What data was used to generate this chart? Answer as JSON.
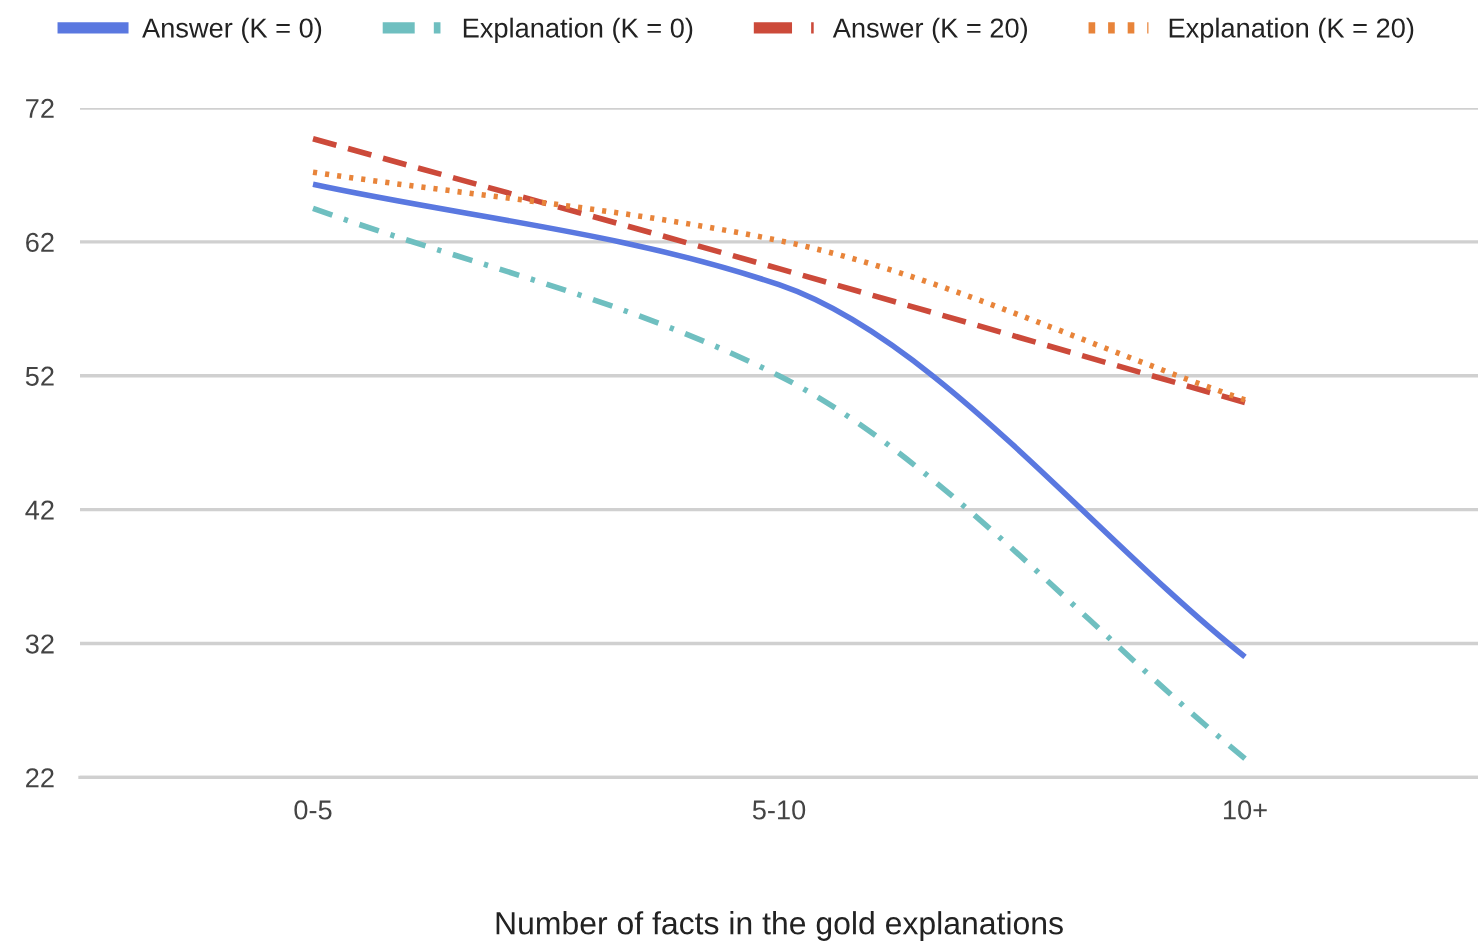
{
  "chart_data": {
    "type": "line",
    "xlabel": "Number of facts in the gold explanations",
    "categories": [
      "0-5",
      "5-10",
      "10+"
    ],
    "series": [
      {
        "name": "Answer (K = 0)",
        "color": "#5a78e0",
        "line_style": "solid",
        "values": [
          66.3,
          58.8,
          31.0
        ]
      },
      {
        "name": "Explanation (K = 0)",
        "color": "#6fbfc0",
        "line_style": "dashdot",
        "values": [
          64.5,
          52.0,
          23.4
        ]
      },
      {
        "name": "Answer (K = 20)",
        "color": "#cc4a3a",
        "line_style": "dashed",
        "values": [
          69.7,
          60.0,
          50.0
        ]
      },
      {
        "name": "Explanation (K = 20)",
        "color": "#e8843a",
        "line_style": "dotted",
        "values": [
          67.2,
          62.1,
          50.2
        ]
      }
    ],
    "ylim": [
      22,
      72
    ],
    "yticks": [
      22,
      32,
      42,
      52,
      62,
      72
    ],
    "grid": "y",
    "legend": "top",
    "marker": "none"
  }
}
